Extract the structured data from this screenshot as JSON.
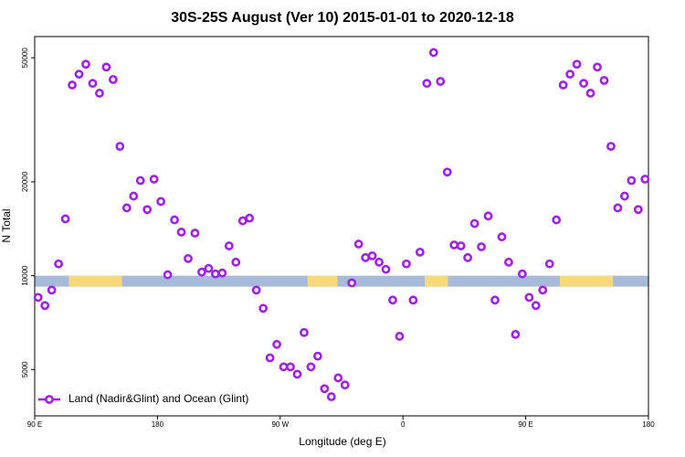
{
  "chart_data": {
    "type": "scatter",
    "title": "30S-25S August (Ver 10)   2015-01-01 to 2020-12-18",
    "x_label": "Longitude (deg E)",
    "y_label": "N Total",
    "log_y": true,
    "legend": "bottom-left",
    "xlim": [
      90,
      540
    ],
    "ylim": [
      3550,
      58500
    ],
    "xticks": [
      {
        "value": 90,
        "label": "90 E"
      },
      180,
      {
        "value": 270,
        "label": "90 W"
      },
      {
        "value": 360,
        "label": "0"
      },
      {
        "value": 450,
        "label": "90 E"
      },
      {
        "value": 540,
        "label": "180"
      }
    ],
    "yticks": [
      5000,
      10000,
      20000,
      50000
    ],
    "surface_band": {
      "value": 9600,
      "ocean_color": "#a5bbd9",
      "land_color": "#f7d87a",
      "land": [
        [
          115,
          154
        ],
        [
          290,
          312
        ],
        [
          376,
          393
        ],
        [
          475,
          514
        ]
      ]
    },
    "x": [
      92.5,
      97.5,
      102.5,
      107.5,
      112.5,
      117.5,
      122.5,
      127.5,
      132.5,
      137.5,
      142.5,
      147.5,
      152.5,
      157.5,
      162.5,
      167.5,
      172.5,
      177.5,
      182.5,
      187.5,
      192.5,
      197.5,
      202.5,
      207.5,
      212.5,
      217.5,
      222.5,
      227.5,
      232.5,
      237.5,
      242.5,
      247.5,
      252.5,
      257.5,
      262.5,
      267.5,
      272.5,
      277.5,
      282.5,
      287.5,
      292.5,
      297.5,
      302.5,
      307.5,
      312.5,
      317.5,
      322.5,
      327.5,
      332.5,
      337.5,
      342.5,
      347.5,
      352.5,
      357.5,
      362.5,
      367.5,
      372.5,
      377.5,
      382.5,
      387.5,
      392.5,
      397.5,
      402.5,
      407.5,
      412.5,
      417.5,
      422.5,
      427.5,
      432.5,
      437.5,
      442.5,
      447.5,
      452.5,
      457.5,
      462.5,
      467.5,
      472.5,
      477.5,
      482.5,
      487.5,
      492.5,
      497.5,
      502.5,
      507.5,
      512.5,
      517.5,
      522.5,
      527.5,
      532.5,
      537.5
    ],
    "series": [
      {
        "name": "Land (Nadir&Glint) and Ocean (Glint)",
        "color": "#a020f0",
        "values": [
          8520,
          8020,
          8990,
          10910,
          15220,
          40900,
          44300,
          47700,
          41400,
          38500,
          46700,
          42600,
          26000,
          16500,
          18000,
          20200,
          16300,
          20400,
          17300,
          10070,
          15100,
          13800,
          11350,
          13700,
          10270,
          10550,
          10130,
          10200,
          12460,
          11050,
          15000,
          15300,
          8990,
          7860,
          5450,
          6020,
          5100,
          5100,
          4830,
          6570,
          5100,
          5520,
          4340,
          4090,
          4700,
          4460,
          9480,
          12630,
          11430,
          11580,
          11050,
          10480,
          8350,
          6390,
          10910,
          8350,
          11900,
          41400,
          52000,
          42000,
          21500,
          12550,
          12460,
          11430,
          14700,
          12380,
          15540,
          8350,
          13320,
          11050,
          6480,
          10130,
          8520,
          8020,
          8990,
          10910,
          15100,
          40900,
          44300,
          47700,
          41400,
          38500,
          46700,
          42300,
          26000,
          16500,
          18000,
          20200,
          16300,
          20400
        ]
      }
    ]
  }
}
